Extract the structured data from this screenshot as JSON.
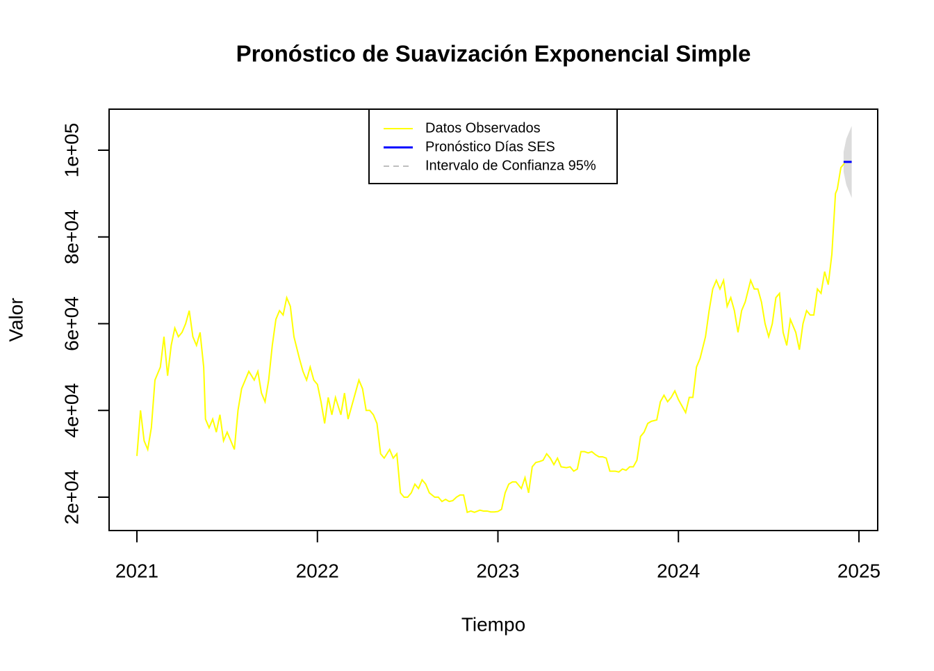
{
  "chart_data": {
    "type": "line",
    "title": "Pronóstico de Suavización Exponencial Simple",
    "xlabel": "Tiempo",
    "ylabel": "Valor",
    "xlim": [
      2020.846,
      2025.104
    ],
    "ylim": [
      12305,
      109459
    ],
    "xticks": [
      2021,
      2022,
      2023,
      2024,
      2025
    ],
    "yticks": [
      {
        "value": 20000,
        "label": "2e+04"
      },
      {
        "value": 40000,
        "label": "4e+04"
      },
      {
        "value": 60000,
        "label": "6e+04"
      },
      {
        "value": 80000,
        "label": "8e+04"
      },
      {
        "value": 100000,
        "label": "1e+05"
      }
    ],
    "legend": "top",
    "series": [
      {
        "name": "Datos Observados",
        "color": "#ffff00",
        "x": [
          2021.0,
          2021.02,
          2021.04,
          2021.06,
          2021.08,
          2021.1,
          2021.13,
          2021.15,
          2021.17,
          2021.19,
          2021.21,
          2021.23,
          2021.25,
          2021.27,
          2021.29,
          2021.31,
          2021.33,
          2021.35,
          2021.37,
          2021.38,
          2021.4,
          2021.42,
          2021.44,
          2021.46,
          2021.48,
          2021.5,
          2021.52,
          2021.54,
          2021.56,
          2021.58,
          2021.6,
          2021.62,
          2021.65,
          2021.67,
          2021.69,
          2021.71,
          2021.73,
          2021.75,
          2021.77,
          2021.79,
          2021.81,
          2021.83,
          2021.85,
          2021.87,
          2021.9,
          2021.92,
          2021.94,
          2021.96,
          2021.98,
          2022.0,
          2022.02,
          2022.04,
          2022.06,
          2022.08,
          2022.1,
          2022.13,
          2022.15,
          2022.17,
          2022.19,
          2022.21,
          2022.23,
          2022.25,
          2022.27,
          2022.29,
          2022.31,
          2022.33,
          2022.35,
          2022.37,
          2022.4,
          2022.42,
          2022.44,
          2022.46,
          2022.48,
          2022.5,
          2022.52,
          2022.54,
          2022.56,
          2022.58,
          2022.6,
          2022.62,
          2022.65,
          2022.67,
          2022.69,
          2022.71,
          2022.73,
          2022.75,
          2022.77,
          2022.79,
          2022.81,
          2022.83,
          2022.85,
          2022.87,
          2022.9,
          2022.92,
          2022.94,
          2022.96,
          2022.98,
          2023.0,
          2023.02,
          2023.04,
          2023.06,
          2023.08,
          2023.1,
          2023.13,
          2023.15,
          2023.17,
          2023.19,
          2023.21,
          2023.23,
          2023.25,
          2023.27,
          2023.29,
          2023.31,
          2023.33,
          2023.35,
          2023.38,
          2023.4,
          2023.42,
          2023.44,
          2023.46,
          2023.48,
          2023.5,
          2023.52,
          2023.54,
          2023.56,
          2023.58,
          2023.6,
          2023.62,
          2023.65,
          2023.67,
          2023.69,
          2023.71,
          2023.73,
          2023.75,
          2023.77,
          2023.79,
          2023.81,
          2023.83,
          2023.85,
          2023.88,
          2023.9,
          2023.92,
          2023.94,
          2023.96,
          2023.98,
          2024.0,
          2024.02,
          2024.04,
          2024.06,
          2024.08,
          2024.1,
          2024.12,
          2024.15,
          2024.17,
          2024.19,
          2024.21,
          2024.23,
          2024.25,
          2024.27,
          2024.29,
          2024.31,
          2024.33,
          2024.35,
          2024.37,
          2024.4,
          2024.42,
          2024.44,
          2024.46,
          2024.48,
          2024.5,
          2024.52,
          2024.54,
          2024.56,
          2024.58,
          2024.6,
          2024.62,
          2024.65,
          2024.67,
          2024.69,
          2024.71,
          2024.73,
          2024.75,
          2024.77,
          2024.79,
          2024.81,
          2024.83,
          2024.85,
          2024.87,
          2024.88,
          2024.9,
          2024.92
        ],
        "values": [
          29500,
          40000,
          33000,
          31000,
          36000,
          47000,
          50000,
          57000,
          48000,
          55000,
          59000,
          57000,
          58000,
          60000,
          63000,
          57000,
          55000,
          58000,
          50000,
          38000,
          36000,
          38000,
          35000,
          39000,
          33000,
          35000,
          33000,
          31000,
          40000,
          45000,
          47000,
          49000,
          47000,
          49000,
          44000,
          42000,
          47000,
          55000,
          61000,
          63000,
          62000,
          66000,
          64000,
          57000,
          52000,
          49000,
          47000,
          50000,
          47000,
          46000,
          42000,
          37000,
          43000,
          39000,
          43000,
          39000,
          44000,
          38000,
          41000,
          44000,
          47000,
          45000,
          40000,
          40000,
          39000,
          37000,
          30000,
          29000,
          31000,
          29000,
          30000,
          21000,
          20000,
          20000,
          21000,
          23000,
          22000,
          24000,
          23000,
          21000,
          20000,
          20000,
          19000,
          19500,
          19000,
          19200,
          20000,
          20500,
          20500,
          16500,
          16800,
          16500,
          17000,
          16800,
          16800,
          16600,
          16600,
          16700,
          17200,
          21000,
          23000,
          23500,
          23500,
          22000,
          24500,
          21000,
          27000,
          28000,
          28200,
          28500,
          30000,
          29000,
          27500,
          29000,
          27000,
          26800,
          27000,
          26000,
          26500,
          30500,
          30500,
          30200,
          30500,
          29800,
          29300,
          29300,
          29000,
          26000,
          26000,
          25800,
          26500,
          26200,
          27000,
          27000,
          28500,
          34000,
          35000,
          37000,
          37500,
          37800,
          42000,
          43500,
          42000,
          43000,
          44500,
          42500,
          41000,
          39500,
          43000,
          43000,
          50000,
          52000,
          57000,
          63000,
          68000,
          70000,
          68000,
          70000,
          64000,
          66000,
          63000,
          58000,
          63000,
          65000,
          70000,
          68000,
          68000,
          65000,
          60000,
          57000,
          60000,
          66000,
          67000,
          58000,
          55000,
          61000,
          58000,
          54000,
          60000,
          63000,
          62000,
          62000,
          68000,
          67000,
          72000,
          69000,
          76000,
          90000,
          91000,
          96000,
          97000
        ]
      },
      {
        "name": "Pronóstico Días SES",
        "color": "#0000ff",
        "x": [
          2024.915,
          2024.93,
          2024.945,
          2024.96
        ],
        "values": [
          97300,
          97300,
          97300,
          97300
        ]
      },
      {
        "name": "Intervalo de Confianza 95%",
        "color": "#bebebe",
        "fill": "#dcdcdc",
        "x": [
          2024.915,
          2024.93,
          2024.945,
          2024.96
        ],
        "lower": [
          95000,
          92000,
          90500,
          89000
        ],
        "upper": [
          99600,
          102600,
          104100,
          105600
        ]
      }
    ]
  }
}
